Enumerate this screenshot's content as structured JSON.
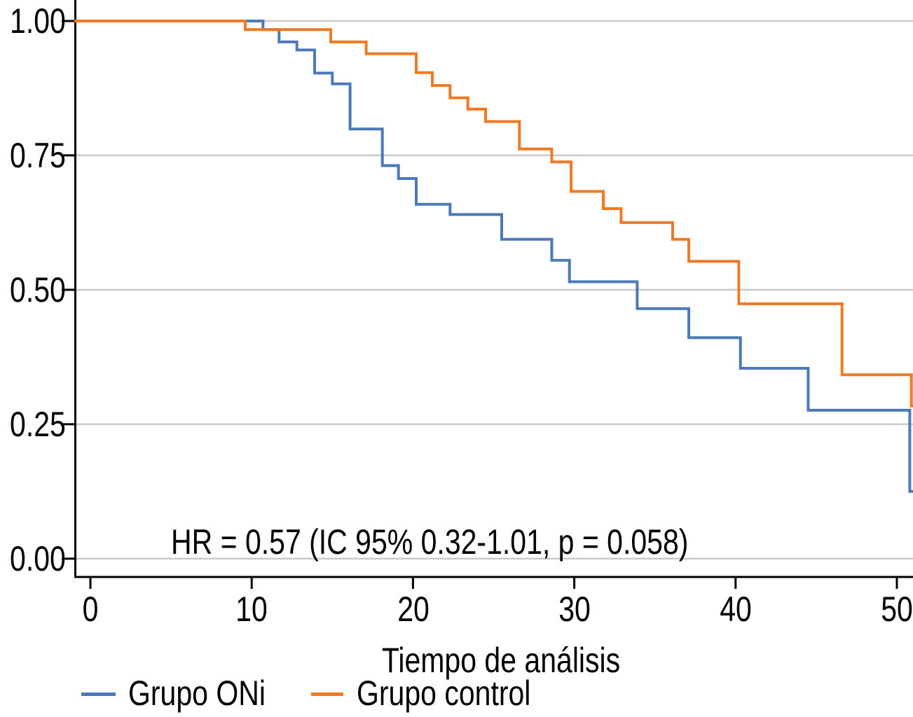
{
  "chart_data": {
    "type": "line",
    "subtype": "kaplan-meier-step",
    "title": "",
    "xlabel": "Tiempo de análisis",
    "ylabel": "",
    "xlim": [
      -1,
      51
    ],
    "ylim": [
      -0.034,
      1.039
    ],
    "grid": true,
    "grid_color": "#c9c9c9",
    "axis_color": "#000000",
    "background": "#ffffff",
    "xticks": [
      0,
      10,
      20,
      30,
      40,
      50
    ],
    "xtick_labels": [
      "0",
      "10",
      "20",
      "30",
      "40",
      "50"
    ],
    "yticks": [
      1.0,
      0.75,
      0.5,
      0.25,
      0.0
    ],
    "ytick_labels": [
      "1.00",
      "0.75",
      "0.50",
      "0.25",
      "0.00"
    ],
    "annotation": "HR = 0.57 (IC 95% 0.32-1.01, p = 0.058)",
    "legend_position": "bottom",
    "series": [
      {
        "name": "Grupo ONi",
        "color": "#4d79b9",
        "start_value": 1.0,
        "steps": [
          [
            10.7,
            0.984
          ],
          [
            11.7,
            0.961
          ],
          [
            12.8,
            0.946
          ],
          [
            13.9,
            0.903
          ],
          [
            15.0,
            0.883
          ],
          [
            16.1,
            0.799
          ],
          [
            18.1,
            0.731
          ],
          [
            19.1,
            0.707
          ],
          [
            20.2,
            0.659
          ],
          [
            22.3,
            0.64
          ],
          [
            25.5,
            0.594
          ],
          [
            28.6,
            0.555
          ],
          [
            29.7,
            0.515
          ],
          [
            33.9,
            0.465
          ],
          [
            37.1,
            0.411
          ],
          [
            40.3,
            0.354
          ],
          [
            44.5,
            0.276
          ],
          [
            50.8,
            0.125
          ]
        ]
      },
      {
        "name": "Grupo control",
        "color": "#ef7a23",
        "start_value": 1.0,
        "steps": [
          [
            9.6,
            0.984
          ],
          [
            14.9,
            0.961
          ],
          [
            17.1,
            0.939
          ],
          [
            20.2,
            0.904
          ],
          [
            21.2,
            0.88
          ],
          [
            22.3,
            0.857
          ],
          [
            23.4,
            0.836
          ],
          [
            24.5,
            0.813
          ],
          [
            26.6,
            0.762
          ],
          [
            28.6,
            0.738
          ],
          [
            29.8,
            0.683
          ],
          [
            31.8,
            0.651
          ],
          [
            32.9,
            0.625
          ],
          [
            36.1,
            0.594
          ],
          [
            37.1,
            0.553
          ],
          [
            40.2,
            0.474
          ],
          [
            46.6,
            0.342
          ],
          [
            50.9,
            0.284
          ]
        ]
      }
    ]
  }
}
